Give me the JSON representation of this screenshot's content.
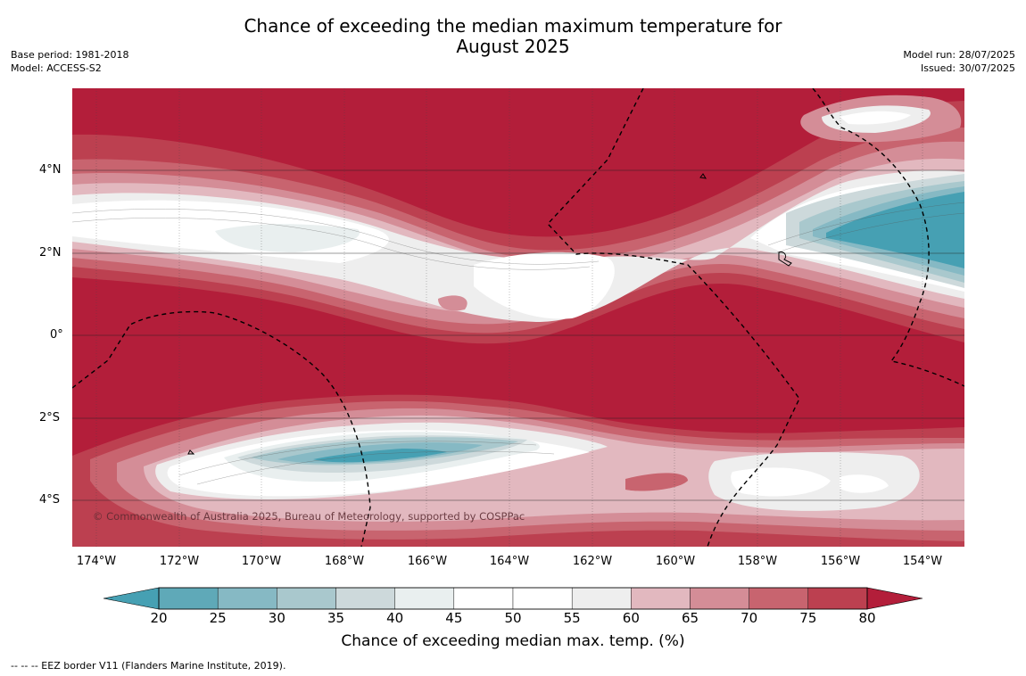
{
  "title_line1": "Chance of exceeding the median maximum temperature for",
  "title_line2": "August 2025",
  "meta_left": {
    "base_period": "Base period: 1981-2018",
    "model": "Model: ACCESS-S2"
  },
  "meta_right": {
    "model_run": "Model run: 28/07/2025",
    "issued": "Issued: 30/07/2025"
  },
  "lat_labels": [
    "4°N",
    "2°N",
    "0°",
    "2°S",
    "4°S"
  ],
  "lon_labels": [
    "174°W",
    "172°W",
    "170°W",
    "168°W",
    "166°W",
    "164°W",
    "162°W",
    "160°W",
    "158°W",
    "156°W",
    "154°W"
  ],
  "copyright": "© Commonwealth of Australia 2025, Bureau of Meteorology, supported by COSPPac",
  "colorbar": {
    "ticks": [
      "20",
      "25",
      "30",
      "35",
      "40",
      "45",
      "50",
      "55",
      "60",
      "65",
      "70",
      "75",
      "80"
    ],
    "colors": [
      "#5fa9b8",
      "#86b9c4",
      "#a9c8cd",
      "#cdd9db",
      "#e9efef",
      "#ffffff",
      "#ffffff",
      "#eeeeee",
      "#e2b8bf",
      "#d48d97",
      "#c8646f",
      "#bc4050"
    ],
    "under_color": "#46a0b3",
    "over_color": "#b31e3a",
    "label": "Chance of exceeding median max. temp. (%)"
  },
  "footnote": "--  --  -- EEZ border V11 (Flanders Marine Institute, 2019)."
}
